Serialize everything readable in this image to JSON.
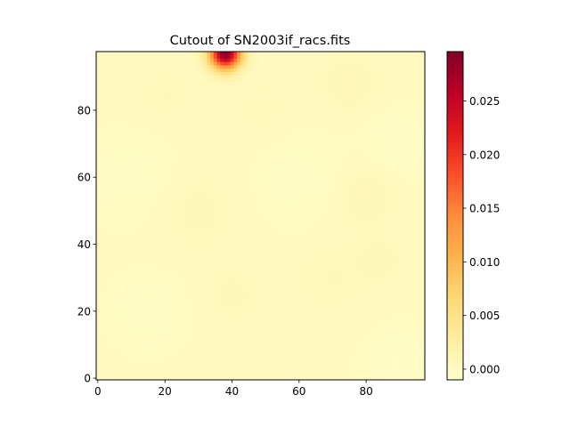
{
  "chart_data": {
    "type": "heatmap",
    "title": "Cutout of SN2003if_racs.fits",
    "xlabel": "",
    "ylabel": "",
    "grid": false,
    "colormap": "YlOrRd",
    "colormap_stops": [
      "#ffffcc",
      "#ffeda0",
      "#fed976",
      "#feb24c",
      "#fd8d3c",
      "#fc4e2a",
      "#e31a1c",
      "#bd0026",
      "#800026"
    ],
    "xlim": [
      -0.5,
      97.5
    ],
    "ylim": [
      -0.5,
      97.5
    ],
    "x_ticks": [
      0,
      20,
      40,
      60,
      80
    ],
    "x_tick_labels": [
      "0",
      "20",
      "40",
      "60",
      "80"
    ],
    "y_ticks": [
      0,
      20,
      40,
      60,
      80
    ],
    "y_tick_labels": [
      "0",
      "20",
      "40",
      "60",
      "80"
    ],
    "grid_size": [
      98,
      98
    ],
    "colorbar": {
      "range": [
        -0.001,
        0.0296
      ],
      "ticks": [
        0.0,
        0.005,
        0.01,
        0.015,
        0.02,
        0.025
      ],
      "tick_labels": [
        "0.000",
        "0.005",
        "0.010",
        "0.015",
        "0.020",
        "0.025"
      ]
    },
    "background_value": 0.0,
    "sources": [
      {
        "x": 38,
        "y": 97,
        "peak": 0.0296,
        "sigma": 3.2
      }
    ],
    "fluctuations": [
      {
        "x": 20,
        "y": 85,
        "amp": 0.0004,
        "sigma": 6
      },
      {
        "x": 75,
        "y": 88,
        "amp": 0.0006,
        "sigma": 7
      },
      {
        "x": 30,
        "y": 50,
        "amp": 0.0005,
        "sigma": 8
      },
      {
        "x": 80,
        "y": 55,
        "amp": 0.0007,
        "sigma": 7
      },
      {
        "x": 62,
        "y": 60,
        "amp": -0.0004,
        "sigma": 9
      },
      {
        "x": 90,
        "y": 70,
        "amp": -0.0005,
        "sigma": 7
      },
      {
        "x": 40,
        "y": 25,
        "amp": 0.0005,
        "sigma": 6
      },
      {
        "x": 15,
        "y": 20,
        "amp": -0.0004,
        "sigma": 7
      },
      {
        "x": 70,
        "y": 30,
        "amp": 0.0004,
        "sigma": 8
      },
      {
        "x": 90,
        "y": 5,
        "amp": -0.0006,
        "sigma": 6
      },
      {
        "x": 10,
        "y": 60,
        "amp": -0.0004,
        "sigma": 8
      },
      {
        "x": 50,
        "y": 80,
        "amp": 0.0003,
        "sigma": 7
      },
      {
        "x": 85,
        "y": 35,
        "amp": 0.0005,
        "sigma": 5
      }
    ]
  }
}
